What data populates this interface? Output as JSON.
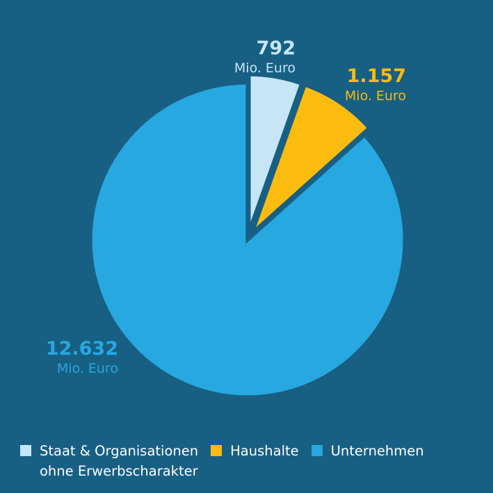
{
  "colors": {
    "background": "#185f84",
    "staat": "#c6e6f6",
    "haushalte": "#fbbc0f",
    "unternehmen": "#27a8e1",
    "legend_text": "#ffffff"
  },
  "chart_data": {
    "type": "pie",
    "title": "",
    "unit": "Mio. Euro",
    "start_angle_deg": 0,
    "direction": "clockwise",
    "slices": [
      {
        "legend": "Staat & Organisationen\nohne Erwerbscharakter",
        "value": 792,
        "value_label": "792",
        "unit_label": "Mio. Euro",
        "color": "#c6e6f6",
        "exploded": true
      },
      {
        "legend": "Haushalte",
        "value": 1157,
        "value_label": "1.157",
        "unit_label": "Mio. Euro",
        "color": "#fbbc0f",
        "exploded": true
      },
      {
        "legend": "Unternehmen",
        "value": 12632,
        "value_label": "12.632",
        "unit_label": "Mio. Euro",
        "color": "#27a8e1",
        "exploded": false
      }
    ],
    "legend_placement": "bottom"
  }
}
